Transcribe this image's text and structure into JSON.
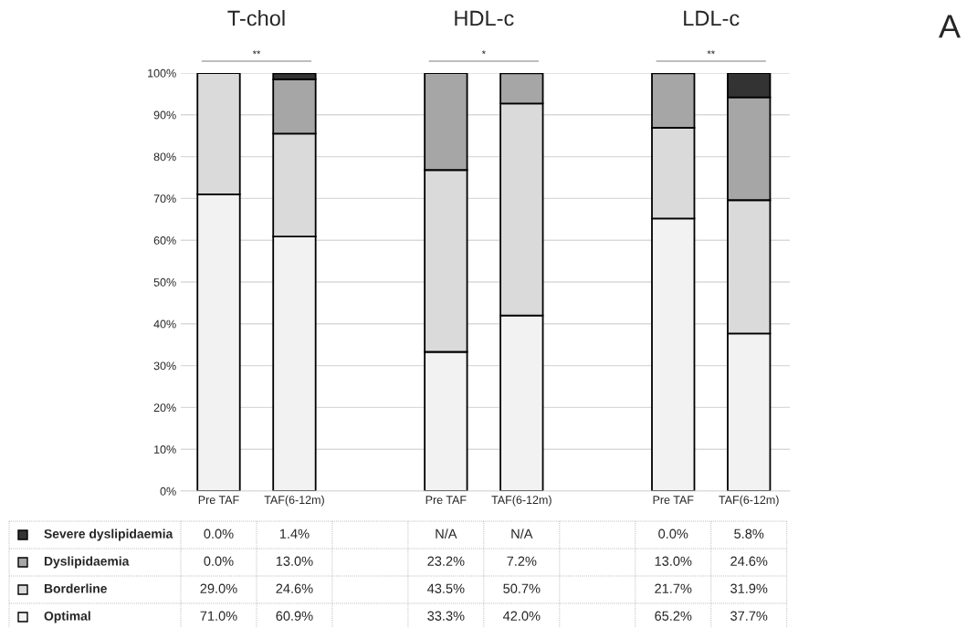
{
  "chart_data": {
    "type": "bar",
    "stacked": true,
    "categories": [
      "Pre TAF",
      "TAF(6-12m)",
      null,
      "Pre TAF",
      "TAF(6-12m)",
      null,
      "Pre TAF",
      "TAF(6-12m)"
    ],
    "series": [
      {
        "name": "Optimal",
        "color": "#f2f2f2",
        "values": [
          71.0,
          60.9,
          null,
          33.3,
          42.0,
          null,
          65.2,
          37.7
        ],
        "value_labels": [
          "71.0%",
          "60.9%",
          null,
          "33.3%",
          "42.0%",
          null,
          "65.2%",
          "37.7%"
        ]
      },
      {
        "name": "Borderline",
        "color": "#dadada",
        "values": [
          29.0,
          24.6,
          null,
          43.5,
          50.7,
          null,
          21.7,
          31.9
        ],
        "value_labels": [
          "29.0%",
          "24.6%",
          null,
          "43.5%",
          "50.7%",
          null,
          "21.7%",
          "31.9%"
        ]
      },
      {
        "name": "Dyslipidaemia",
        "color": "#a6a6a6",
        "values": [
          0.0,
          13.0,
          null,
          23.2,
          7.2,
          null,
          13.0,
          24.6
        ],
        "value_labels": [
          "0.0%",
          "13.0%",
          null,
          "23.2%",
          "7.2%",
          null,
          "13.0%",
          "24.6%"
        ]
      },
      {
        "name": "Severe dyslipidaemia",
        "color": "#333333",
        "values": [
          0.0,
          1.4,
          null,
          null,
          null,
          null,
          0.0,
          5.8
        ],
        "value_labels": [
          "0.0%",
          "1.4%",
          null,
          "N/A",
          "N/A",
          null,
          "0.0%",
          "5.8%"
        ]
      }
    ],
    "ylim": [
      0,
      100
    ],
    "yticks": [
      {
        "value": 0,
        "label": "0%"
      },
      {
        "value": 10,
        "label": "10%"
      },
      {
        "value": 20,
        "label": "20%"
      },
      {
        "value": 30,
        "label": "30%"
      },
      {
        "value": 40,
        "label": "40%"
      },
      {
        "value": 50,
        "label": "50%"
      },
      {
        "value": 60,
        "label": "60%"
      },
      {
        "value": 70,
        "label": "70%"
      },
      {
        "value": 80,
        "label": "80%"
      },
      {
        "value": 90,
        "label": "90%"
      },
      {
        "value": 100,
        "label": "100%"
      }
    ],
    "grid": "y",
    "legend": "bottom left",
    "annotations": [
      "T-chol",
      "**",
      "HDL-c",
      "*",
      "LDL-c",
      "**",
      "A"
    ]
  }
}
